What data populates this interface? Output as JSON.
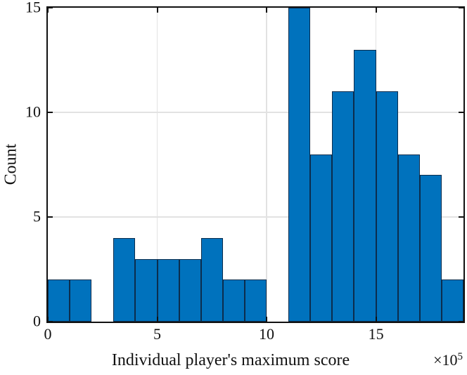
{
  "chart_data": {
    "type": "bar",
    "subtype": "histogram",
    "title": "",
    "xlabel": "Individual player's maximum score",
    "ylabel": "Count",
    "x_exponent_base": "×10",
    "x_exponent_power": "5",
    "bins": {
      "start": 0,
      "width": 1,
      "unit_multiplier": 100000
    },
    "counts": [
      2,
      2,
      0,
      4,
      3,
      3,
      3,
      4,
      2,
      2,
      0,
      15,
      8,
      11,
      13,
      11,
      8,
      7,
      2
    ],
    "total_count": 100,
    "xlim": [
      0,
      19
    ],
    "ylim": [
      0,
      15
    ],
    "xticks": [
      0,
      5,
      10,
      15
    ],
    "yticks": [
      0,
      5,
      10,
      15
    ],
    "grid": true,
    "legend_position": "none",
    "colors": {
      "bar_face": "#0072bd",
      "bar_edge": "#0c2d4d",
      "grid": "#e2e2e2",
      "axis": "#111111",
      "text": "#111111",
      "background": "#ffffff"
    }
  }
}
